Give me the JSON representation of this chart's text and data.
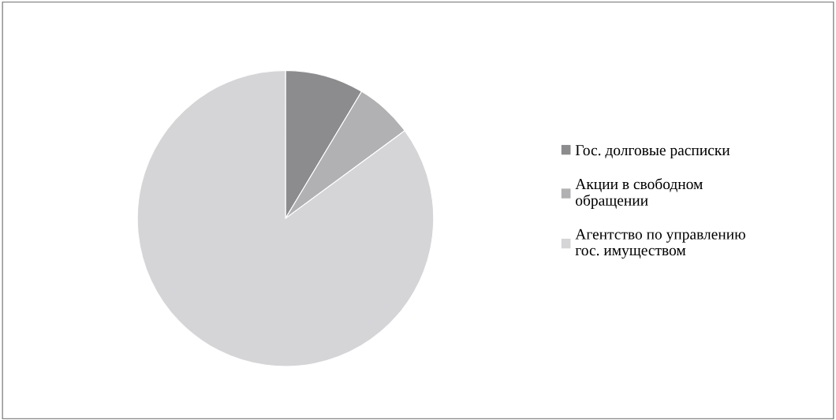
{
  "chart_data": {
    "type": "pie",
    "categories": [
      "Гос. долговые расписки",
      "Акции в свободном\nобращении",
      "Агентство по управлению\nгос. имуществом"
    ],
    "values": [
      8.6,
      6.3,
      85.1
    ],
    "colors": [
      "#8c8c8e",
      "#b1b1b3",
      "#d5d5d7"
    ],
    "legend": "right"
  }
}
